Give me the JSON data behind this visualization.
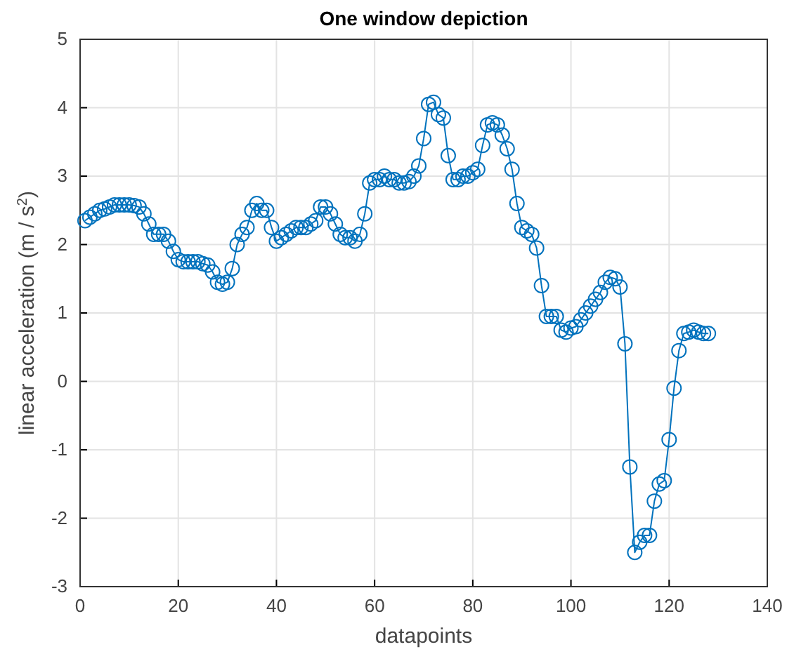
{
  "chart_data": {
    "type": "line",
    "title": "One window depiction",
    "xlabel": "datapoints",
    "ylabel": "linear acceleration (m / s$^{2}$)",
    "x": [
      1,
      2,
      3,
      4,
      5,
      6,
      7,
      8,
      9,
      10,
      11,
      12,
      13,
      14,
      15,
      16,
      17,
      18,
      19,
      20,
      21,
      22,
      23,
      24,
      25,
      26,
      27,
      28,
      29,
      30,
      31,
      32,
      33,
      34,
      35,
      36,
      37,
      38,
      39,
      40,
      41,
      42,
      43,
      44,
      45,
      46,
      47,
      48,
      49,
      50,
      51,
      52,
      53,
      54,
      55,
      56,
      57,
      58,
      59,
      60,
      61,
      62,
      63,
      64,
      65,
      66,
      67,
      68,
      69,
      70,
      71,
      72,
      73,
      74,
      75,
      76,
      77,
      78,
      79,
      80,
      81,
      82,
      83,
      84,
      85,
      86,
      87,
      88,
      89,
      90,
      91,
      92,
      93,
      94,
      95,
      96,
      97,
      98,
      99,
      100,
      101,
      102,
      103,
      104,
      105,
      106,
      107,
      108,
      109,
      110,
      111,
      112,
      113,
      114,
      115,
      116,
      117,
      118,
      119,
      120,
      121,
      122,
      123,
      124,
      125,
      126,
      127,
      128
    ],
    "series": [
      {
        "color": "#0072bd",
        "values": [
          2.35,
          2.4,
          2.45,
          2.5,
          2.52,
          2.55,
          2.58,
          2.58,
          2.58,
          2.58,
          2.57,
          2.55,
          2.45,
          2.3,
          2.15,
          2.15,
          2.15,
          2.05,
          1.9,
          1.78,
          1.75,
          1.75,
          1.75,
          1.75,
          1.72,
          1.7,
          1.6,
          1.45,
          1.42,
          1.45,
          1.65,
          2.0,
          2.15,
          2.25,
          2.5,
          2.6,
          2.5,
          2.5,
          2.25,
          2.05,
          2.1,
          2.15,
          2.2,
          2.25,
          2.25,
          2.25,
          2.3,
          2.35,
          2.55,
          2.55,
          2.45,
          2.3,
          2.15,
          2.1,
          2.1,
          2.05,
          2.15,
          2.45,
          2.9,
          2.95,
          2.95,
          3.0,
          2.95,
          2.95,
          2.9,
          2.9,
          2.92,
          3.0,
          3.15,
          3.55,
          4.05,
          4.08,
          3.9,
          3.85,
          3.3,
          2.95,
          2.95,
          3.0,
          3.0,
          3.05,
          3.1,
          3.45,
          3.75,
          3.78,
          3.75,
          3.6,
          3.4,
          3.1,
          2.6,
          2.25,
          2.2,
          2.15,
          1.95,
          1.4,
          0.95,
          0.95,
          0.95,
          0.75,
          0.72,
          0.78,
          0.8,
          0.9,
          1.0,
          1.1,
          1.2,
          1.3,
          1.45,
          1.52,
          1.5,
          1.38,
          0.55,
          -1.25,
          -2.5,
          -2.35,
          -2.25,
          -2.25,
          -1.75,
          -1.5,
          -1.45,
          -0.85,
          -0.1,
          0.45,
          0.7,
          0.72,
          0.75,
          0.72,
          0.7,
          0.7
        ]
      }
    ],
    "xlim": [
      0,
      140
    ],
    "xticks": [
      0,
      20,
      40,
      60,
      80,
      100,
      120,
      140
    ],
    "ylim": [
      -3,
      5
    ],
    "yticks": [
      -3,
      -2,
      -1,
      0,
      1,
      2,
      3,
      4,
      5
    ],
    "grid": true,
    "marker": "circle",
    "line_style": "solid"
  }
}
